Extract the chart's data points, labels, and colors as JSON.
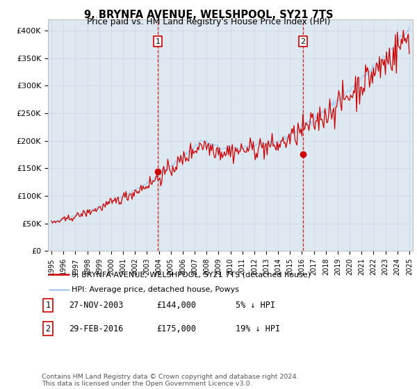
{
  "title": "9, BRYNFA AVENUE, WELSHPOOL, SY21 7TS",
  "subtitle": "Price paid vs. HM Land Registry's House Price Index (HPI)",
  "ylim": [
    0,
    420000
  ],
  "yticks": [
    0,
    50000,
    100000,
    150000,
    200000,
    250000,
    300000,
    350000,
    400000
  ],
  "ytick_labels": [
    "£0",
    "£50K",
    "£100K",
    "£150K",
    "£200K",
    "£250K",
    "£300K",
    "£350K",
    "£400K"
  ],
  "hpi_color": "#aaccee",
  "price_color": "#cc0000",
  "marker_color": "#cc0000",
  "vline_color": "#cc0000",
  "grid_color": "#d0d8e8",
  "plot_bg": "#dde8f0",
  "sale1_price": 144000,
  "sale1_date_str": "27-NOV-2003",
  "sale1_price_str": "£144,000",
  "sale1_hpi_str": "5% ↓ HPI",
  "sale2_price": 175000,
  "sale2_date_str": "29-FEB-2016",
  "sale2_price_str": "£175,000",
  "sale2_hpi_str": "19% ↓ HPI",
  "legend_line1": "9, BRYNFA AVENUE, WELSHPOOL, SY21 7TS (detached house)",
  "legend_line2": "HPI: Average price, detached house, Powys",
  "footer": "Contains HM Land Registry data © Crown copyright and database right 2024.\nThis data is licensed under the Open Government Licence v3.0.",
  "start_year": 1995,
  "end_year": 2025
}
